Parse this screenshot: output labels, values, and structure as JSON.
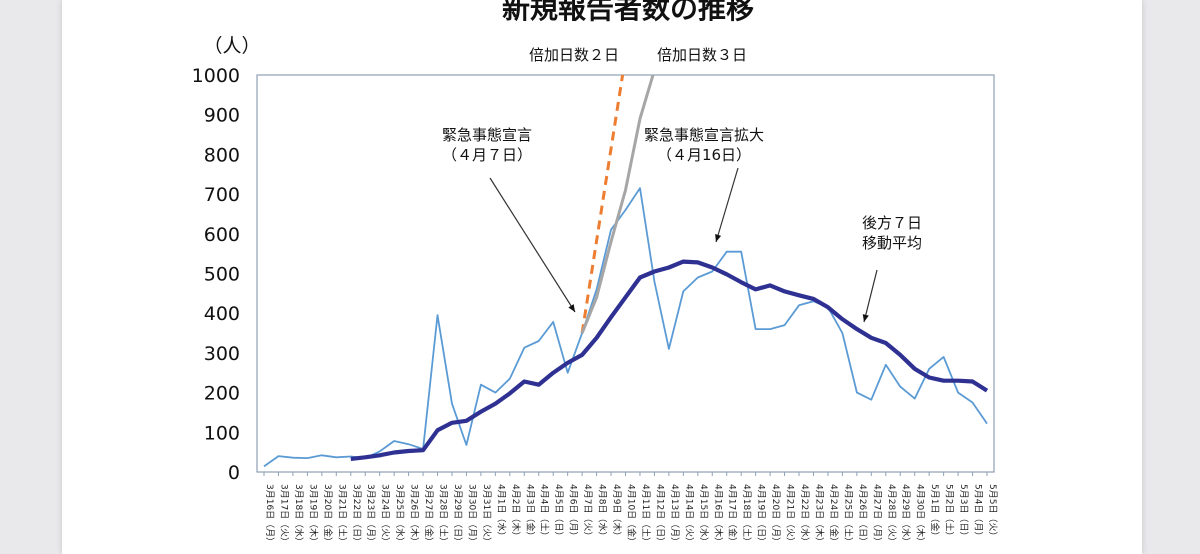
{
  "chart_data": {
    "type": "line",
    "title": "新規報告者数の推移",
    "ylabel": "（人）",
    "ylim": [
      0,
      1000
    ],
    "yticks": [
      "0",
      "100",
      "200",
      "300",
      "400",
      "500",
      "600",
      "700",
      "800",
      "900",
      "1000"
    ],
    "categories": [
      "3月16日（月）",
      "3月17日（火）",
      "3月18日（水）",
      "3月19日（木）",
      "3月20日（金）",
      "3月21日（土）",
      "3月22日（日）",
      "3月23日（月）",
      "3月24日（火）",
      "3月25日（水）",
      "3月26日（木）",
      "3月27日（金）",
      "3月28日（土）",
      "3月29日（日）",
      "3月30日（月）",
      "3月31日（火）",
      "4月1日（水）",
      "4月2日（木）",
      "4月3日（金）",
      "4月4日（土）",
      "4月5日（日）",
      "4月6日（月）",
      "4月7日（火）",
      "4月8日（水）",
      "4月9日（木）",
      "4月10日（金）",
      "4月11日（土）",
      "4月12日（日）",
      "4月13日（月）",
      "4月14日（火）",
      "4月15日（水）",
      "4月16日（木）",
      "4月17日（金）",
      "4月18日（土）",
      "4月19日（日）",
      "4月20日（月）",
      "4月21日（火）",
      "4月22日（水）",
      "4月23日（木）",
      "4月24日（金）",
      "4月25日（土）",
      "4月26日（日）",
      "4月27日（月）",
      "4月28日（火）",
      "4月29日（水）",
      "4月30日（木）",
      "5月1日（金）",
      "5月2日（土）",
      "5月3日（日）",
      "5月4日（月）",
      "5月5日（火）"
    ],
    "series": [
      {
        "key": "daily",
        "color": "#5b9bd5",
        "values": [
          14,
          40,
          36,
          35,
          42,
          37,
          39,
          35,
          52,
          78,
          70,
          58,
          395,
          172,
          68,
          220,
          200,
          235,
          313,
          330,
          378,
          250,
          350,
          460,
          610,
          660,
          715,
          480,
          310,
          455,
          490,
          505,
          555,
          555,
          360,
          360,
          370,
          420,
          430,
          415,
          350,
          200,
          182,
          270,
          215,
          185,
          260,
          290,
          200,
          175,
          122
        ]
      },
      {
        "key": "avg7",
        "name": "後方７日移動平均",
        "color": "#2e3192",
        "values": [
          null,
          null,
          null,
          null,
          null,
          null,
          33,
          37,
          42,
          49,
          53,
          55,
          105,
          124,
          129,
          152,
          172,
          198,
          228,
          220,
          250,
          275,
          295,
          338,
          390,
          440,
          490,
          505,
          515,
          530,
          528,
          515,
          498,
          478,
          460,
          470,
          455,
          445,
          436,
          415,
          385,
          360,
          338,
          325,
          295,
          260,
          238,
          230,
          230,
          228,
          205
        ]
      },
      {
        "key": "double2",
        "name": "倍加日数２日",
        "color": "#ed7d31",
        "x": [
          22,
          24.8
        ],
        "values": [
          350,
          1000
        ]
      },
      {
        "key": "double3",
        "name": "倍加日数３日",
        "color": "#a6a6a6",
        "x": [
          22,
          23,
          24,
          25,
          26,
          26.9
        ],
        "values": [
          350,
          440,
          580,
          710,
          890,
          1000
        ]
      }
    ],
    "legend_top": [
      "倍加日数２日",
      "倍加日数３日"
    ],
    "annotations": [
      {
        "key": "a1",
        "lines": [
          "緊急事態宣言",
          "（４月７日）"
        ]
      },
      {
        "key": "a2",
        "lines": [
          "緊急事態宣言拡大",
          "（４月16日）"
        ]
      },
      {
        "key": "a3",
        "lines": [
          "後方７日",
          "移動平均"
        ]
      }
    ],
    "grid": false
  }
}
